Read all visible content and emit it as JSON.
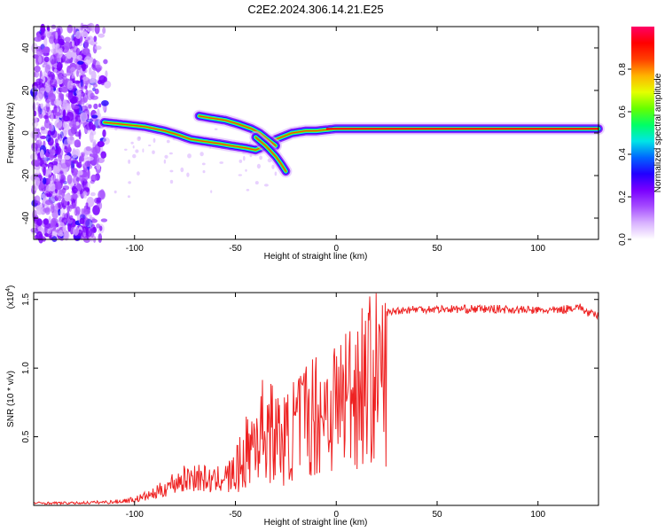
{
  "title": "C2E2.2024.306.14.21.E25",
  "chart_data": [
    {
      "type": "heatmap",
      "xlabel": "Height of straight line (km)",
      "ylabel": "Frequency (Hz)",
      "xlim": [
        -150,
        130
      ],
      "ylim": [
        -50,
        50
      ],
      "xticks": [
        -100,
        -50,
        0,
        50,
        100
      ],
      "yticks": [
        -40,
        -20,
        0,
        20,
        40
      ],
      "colorbar": {
        "label": "Normalized spectral amplitude",
        "range": [
          0.0,
          1.0
        ],
        "ticks": [
          0.0,
          0.2,
          0.4,
          0.6,
          0.8
        ],
        "tick_labels": [
          "0.0",
          "0.2",
          "0.4",
          "0.6",
          "0.8"
        ],
        "colors": [
          "#ffffff",
          "#d9b3ff",
          "#a64dff",
          "#7a00ff",
          "#2200ff",
          "#0066ff",
          "#00e5e5",
          "#00ff66",
          "#66ff00",
          "#e5ff00",
          "#ffb300",
          "#ff4000",
          "#ff0000",
          "#ff0066"
        ]
      },
      "ridges": [
        {
          "x": [
            -115,
            -105,
            -95,
            -85,
            -78,
            -72,
            -65,
            -58,
            -52,
            -45,
            -40,
            -35,
            -30,
            -22,
            -15,
            -10,
            -5,
            0,
            10,
            20,
            40,
            60,
            80,
            90,
            100,
            110,
            120,
            130
          ],
          "f": [
            5,
            4,
            3,
            1,
            -1,
            -3,
            -4,
            -5,
            -6,
            -7,
            -8,
            -6,
            -3,
            0,
            1,
            1,
            1.5,
            2,
            2,
            2,
            2,
            2,
            2,
            2,
            2,
            2,
            2,
            2
          ]
        },
        {
          "x": [
            -68,
            -62,
            -55,
            -48,
            -42,
            -38,
            -34,
            -30
          ],
          "f": [
            8,
            7,
            6,
            4,
            2,
            0,
            -3,
            -6
          ]
        },
        {
          "x": [
            -40,
            -35,
            -30,
            -27,
            -25
          ],
          "f": [
            -2,
            -6,
            -11,
            -15,
            -18
          ]
        }
      ]
    },
    {
      "type": "line",
      "xlabel": "Height of straight line (km)",
      "ylabel": "SNR (10 * v/v)",
      "y_multiplier": "(x10",
      "y_multiplier_exp": "4",
      "y_multiplier_close": ")",
      "xlim": [
        -150,
        130
      ],
      "ylim": [
        0,
        1.55
      ],
      "xticks": [
        -100,
        -50,
        0,
        50,
        100
      ],
      "yticks": [
        0.5,
        1.0,
        1.5
      ],
      "ytick_labels": [
        "0.5",
        "1.0",
        "1.5"
      ],
      "color": "#ee2222",
      "envelope": {
        "x": [
          -150,
          -130,
          -110,
          -100,
          -90,
          -80,
          -70,
          -60,
          -50,
          -45,
          -40,
          -35,
          -30,
          -25,
          -20,
          -15,
          -10,
          -5,
          0,
          5,
          10,
          15,
          20,
          25,
          30,
          40,
          50,
          60,
          80,
          100,
          110,
          120,
          125,
          130
        ],
        "y": [
          0.02,
          0.02,
          0.03,
          0.05,
          0.1,
          0.2,
          0.25,
          0.2,
          0.35,
          0.55,
          0.75,
          0.85,
          0.75,
          0.7,
          0.85,
          0.95,
          1.0,
          1.05,
          1.1,
          1.2,
          1.3,
          1.35,
          1.38,
          1.4,
          1.42,
          1.43,
          1.43,
          1.43,
          1.43,
          1.42,
          1.42,
          1.45,
          1.4,
          1.38
        ]
      }
    }
  ]
}
